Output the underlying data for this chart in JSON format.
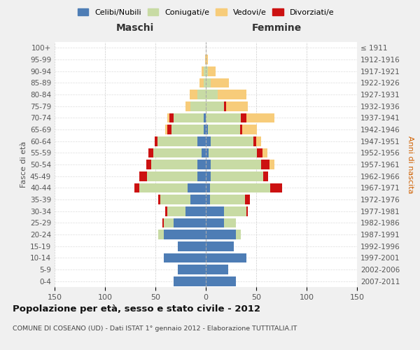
{
  "age_groups": [
    "0-4",
    "5-9",
    "10-14",
    "15-19",
    "20-24",
    "25-29",
    "30-34",
    "35-39",
    "40-44",
    "45-49",
    "50-54",
    "55-59",
    "60-64",
    "65-69",
    "70-74",
    "75-79",
    "80-84",
    "85-89",
    "90-94",
    "95-99",
    "100+"
  ],
  "birth_years": [
    "2007-2011",
    "2002-2006",
    "1997-2001",
    "1992-1996",
    "1987-1991",
    "1982-1986",
    "1977-1981",
    "1972-1976",
    "1967-1971",
    "1962-1966",
    "1957-1961",
    "1952-1956",
    "1947-1951",
    "1942-1946",
    "1937-1941",
    "1932-1936",
    "1927-1931",
    "1922-1926",
    "1917-1921",
    "1912-1916",
    "≤ 1911"
  ],
  "male": {
    "celibi": [
      32,
      28,
      42,
      28,
      42,
      32,
      20,
      15,
      18,
      8,
      8,
      4,
      8,
      2,
      2,
      0,
      0,
      0,
      0,
      0,
      0
    ],
    "coniugati": [
      0,
      0,
      0,
      0,
      5,
      10,
      18,
      30,
      48,
      50,
      46,
      48,
      40,
      32,
      30,
      15,
      8,
      2,
      2,
      0,
      0
    ],
    "vedovi": [
      0,
      0,
      0,
      0,
      0,
      0,
      0,
      0,
      0,
      0,
      0,
      0,
      0,
      2,
      2,
      5,
      8,
      4,
      2,
      1,
      0
    ],
    "divorziati": [
      0,
      0,
      0,
      0,
      0,
      1,
      2,
      2,
      5,
      8,
      5,
      5,
      3,
      4,
      4,
      0,
      0,
      0,
      0,
      0,
      0
    ]
  },
  "female": {
    "nubili": [
      30,
      22,
      40,
      28,
      30,
      18,
      18,
      4,
      4,
      5,
      5,
      3,
      5,
      2,
      0,
      0,
      0,
      0,
      0,
      0,
      0
    ],
    "coniugate": [
      0,
      0,
      0,
      0,
      5,
      12,
      22,
      35,
      60,
      52,
      50,
      48,
      42,
      32,
      35,
      18,
      12,
      5,
      2,
      0,
      0
    ],
    "vedove": [
      0,
      0,
      0,
      0,
      0,
      0,
      0,
      0,
      0,
      0,
      5,
      5,
      5,
      15,
      28,
      22,
      28,
      18,
      8,
      2,
      0
    ],
    "divorziate": [
      0,
      0,
      0,
      0,
      0,
      0,
      2,
      5,
      12,
      5,
      8,
      5,
      3,
      2,
      5,
      2,
      0,
      0,
      0,
      0,
      0
    ]
  },
  "colors": {
    "celibi": "#4e7db5",
    "coniugati": "#c8dba4",
    "vedovi": "#f7cc7a",
    "divorziati": "#cc1111"
  },
  "xlim": 150,
  "title": "Popolazione per età, sesso e stato civile - 2012",
  "subtitle": "COMUNE DI COSEANO (UD) - Dati ISTAT 1° gennaio 2012 - Elaborazione TUTTITALIA.IT",
  "xlabel_left": "Maschi",
  "xlabel_right": "Femmine",
  "ylabel_left": "Fasce di età",
  "ylabel_right": "Anni di nascita",
  "bg_color": "#f0f0f0",
  "plot_bg": "#ffffff"
}
